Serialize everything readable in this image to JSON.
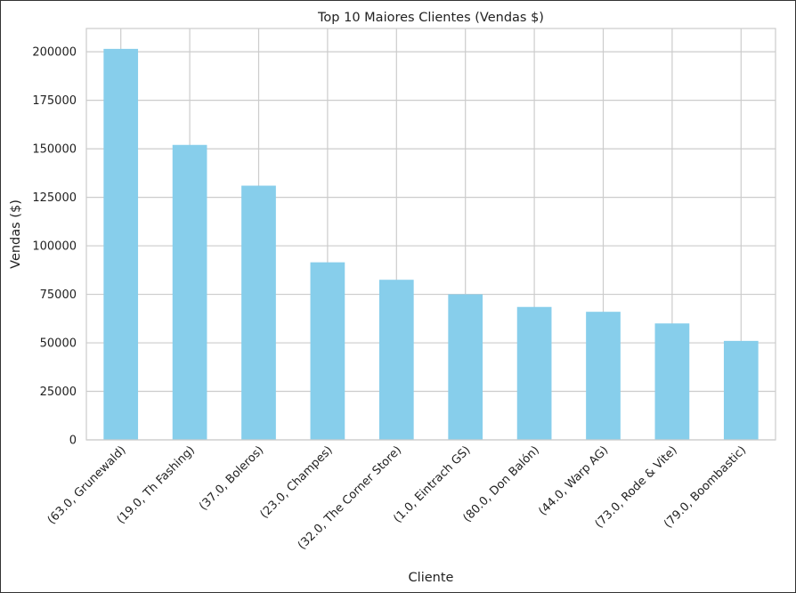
{
  "chart_data": {
    "type": "bar",
    "title": "Top 10 Maiores Clientes (Vendas $)",
    "xlabel": "Cliente",
    "ylabel": "Vendas ($)",
    "categories": [
      "(63.0, Grunewald)",
      "(19.0, Th Fashing)",
      "(37.0, Boleros)",
      "(23.0, Champes)",
      "(32.0, The Corner Store)",
      "(1.0, Eintrach GS)",
      "(80.0, Don Balón)",
      "(44.0, Warp AG)",
      "(73.0, Rode & Vite)",
      "(79.0, Boombastic)"
    ],
    "values": [
      201500,
      152000,
      131000,
      91500,
      82500,
      75000,
      68500,
      66000,
      60000,
      51000
    ],
    "ylim": [
      0,
      212000
    ],
    "yticks": [
      0,
      25000,
      50000,
      75000,
      100000,
      125000,
      150000,
      175000,
      200000
    ],
    "ytick_labels": [
      "0",
      "25000",
      "50000",
      "75000",
      "100000",
      "125000",
      "150000",
      "175000",
      "200000"
    ],
    "grid": true,
    "bar_color": "#87ceeb",
    "grid_color": "#cccccc"
  }
}
